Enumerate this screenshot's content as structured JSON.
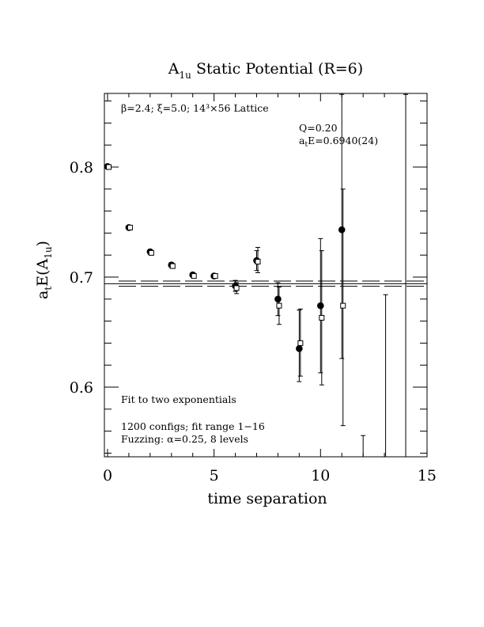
{
  "chart_data": {
    "type": "scatter",
    "title_main": "A",
    "title_sub": "1u",
    "title_rest": " Static Potential (R=6)",
    "xlabel": "time separation",
    "ylabel_pre": "a",
    "ylabel_pre_sub": "t",
    "ylabel_mid": "E(A",
    "ylabel_sub": "1u",
    "ylabel_post": ")",
    "xlim": [
      0,
      15
    ],
    "ylim": [
      0.536,
      0.866
    ],
    "x_ticks": [
      0,
      5,
      10,
      15
    ],
    "x_tick_labels": [
      "0",
      "5",
      "10",
      "15"
    ],
    "y_ticks": [
      0.6,
      0.7,
      0.8
    ],
    "y_tick_labels": [
      "0.6",
      "0.7",
      "0.8"
    ],
    "annotations": {
      "lattice": "β=2.4; ξ=5.0; 14³×56 Lattice",
      "q": "Q=0.20",
      "ate_pre": "a",
      "ate_sub": "t",
      "ate_post": "E=0.6940(24)",
      "fit_method": "Fit to two exponentials",
      "configs": "1200 configs; fit range 1−16",
      "fuzzing": "Fuzzing: α=0.25, 8 levels"
    },
    "fit": {
      "value": 0.694,
      "error": 0.0024
    },
    "series": [
      {
        "marker": "filled-circle",
        "points": [
          {
            "x": 0,
            "y": 0.8005,
            "lo": 0.7995,
            "hi": 0.8015
          },
          {
            "x": 1,
            "y": 0.745,
            "lo": 0.743,
            "hi": 0.747
          },
          {
            "x": 2,
            "y": 0.723,
            "lo": 0.721,
            "hi": 0.725
          },
          {
            "x": 3,
            "y": 0.711,
            "lo": 0.709,
            "hi": 0.713
          },
          {
            "x": 4,
            "y": 0.702,
            "lo": 0.7,
            "hi": 0.704
          },
          {
            "x": 5,
            "y": 0.701,
            "lo": 0.699,
            "hi": 0.703
          },
          {
            "x": 6,
            "y": 0.692,
            "lo": 0.687,
            "hi": 0.697
          },
          {
            "x": 7,
            "y": 0.715,
            "lo": 0.706,
            "hi": 0.724
          },
          {
            "x": 8,
            "y": 0.68,
            "lo": 0.665,
            "hi": 0.695
          },
          {
            "x": 9,
            "y": 0.635,
            "lo": 0.605,
            "hi": 0.67
          },
          {
            "x": 10,
            "y": 0.674,
            "lo": 0.613,
            "hi": 0.735
          },
          {
            "x": 11,
            "y": 0.743,
            "lo": 0.626,
            "hi": 0.866
          },
          {
            "x": 12,
            "y": null,
            "lo": 0.536,
            "hi": 0.556
          },
          {
            "x": 14,
            "y": null,
            "lo": 0.536,
            "hi": 0.866
          }
        ]
      },
      {
        "marker": "open-square",
        "points": [
          {
            "x": 0,
            "y": 0.8,
            "lo": 0.799,
            "hi": 0.801
          },
          {
            "x": 1,
            "y": 0.745,
            "lo": 0.743,
            "hi": 0.747
          },
          {
            "x": 2,
            "y": 0.722,
            "lo": 0.72,
            "hi": 0.724
          },
          {
            "x": 3,
            "y": 0.71,
            "lo": 0.708,
            "hi": 0.712
          },
          {
            "x": 4,
            "y": 0.701,
            "lo": 0.699,
            "hi": 0.703
          },
          {
            "x": 5,
            "y": 0.701,
            "lo": 0.699,
            "hi": 0.703
          },
          {
            "x": 6,
            "y": 0.69,
            "lo": 0.685,
            "hi": 0.695
          },
          {
            "x": 7,
            "y": 0.714,
            "lo": 0.704,
            "hi": 0.727
          },
          {
            "x": 8,
            "y": 0.674,
            "lo": 0.657,
            "hi": 0.691
          },
          {
            "x": 9,
            "y": 0.64,
            "lo": 0.61,
            "hi": 0.671
          },
          {
            "x": 10,
            "y": 0.663,
            "lo": 0.602,
            "hi": 0.724
          },
          {
            "x": 11,
            "y": 0.674,
            "lo": 0.565,
            "hi": 0.78
          },
          {
            "x": 13,
            "y": null,
            "lo": 0.536,
            "hi": 0.684
          }
        ]
      }
    ]
  }
}
